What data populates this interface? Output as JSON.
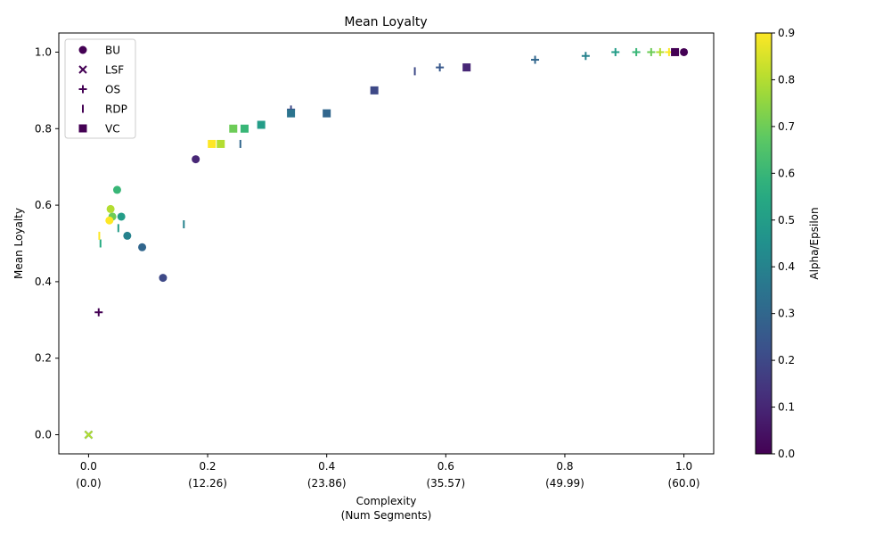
{
  "chart_data": {
    "type": "scatter",
    "title": "Mean Loyalty",
    "xlabel_lines": [
      "Complexity",
      "(Num Segments)"
    ],
    "ylabel": "Mean Loyalty",
    "xlim": [
      -0.05,
      1.05
    ],
    "ylim": [
      -0.05,
      1.05
    ],
    "x_ticks": [
      {
        "value": 0.0,
        "label": "0.0",
        "sub": "(0.0)"
      },
      {
        "value": 0.2,
        "label": "0.2",
        "sub": "(12.26)"
      },
      {
        "value": 0.4,
        "label": "0.4",
        "sub": "(23.86)"
      },
      {
        "value": 0.6,
        "label": "0.6",
        "sub": "(35.57)"
      },
      {
        "value": 0.8,
        "label": "0.8",
        "sub": "(49.99)"
      },
      {
        "value": 1.0,
        "label": "1.0",
        "sub": "(60.0)"
      }
    ],
    "y_ticks": [
      {
        "value": 0.0,
        "label": "0.0"
      },
      {
        "value": 0.2,
        "label": "0.2"
      },
      {
        "value": 0.4,
        "label": "0.4"
      },
      {
        "value": 0.6,
        "label": "0.6"
      },
      {
        "value": 0.8,
        "label": "0.8"
      },
      {
        "value": 1.0,
        "label": "1.0"
      }
    ],
    "grid": false,
    "legend_position": "top-left",
    "colorbar": {
      "label": "Alpha/Epsilon",
      "range": [
        0,
        0.9
      ],
      "colormap": "viridis",
      "ticks": [
        {
          "value": 0.0,
          "label": "0.0"
        },
        {
          "value": 0.1,
          "label": "0.1"
        },
        {
          "value": 0.2,
          "label": "0.2"
        },
        {
          "value": 0.3,
          "label": "0.3"
        },
        {
          "value": 0.4,
          "label": "0.4"
        },
        {
          "value": 0.5,
          "label": "0.5"
        },
        {
          "value": 0.6,
          "label": "0.6"
        },
        {
          "value": 0.7,
          "label": "0.7"
        },
        {
          "value": 0.8,
          "label": "0.8"
        },
        {
          "value": 0.9,
          "label": "0.9"
        }
      ]
    },
    "series": [
      {
        "name": "BU",
        "marker": "circle",
        "points": [
          {
            "x": 1.0,
            "y": 1.0,
            "c": 0.0
          },
          {
            "x": 0.18,
            "y": 0.72,
            "c": 0.1
          },
          {
            "x": 0.125,
            "y": 0.41,
            "c": 0.2
          },
          {
            "x": 0.09,
            "y": 0.49,
            "c": 0.3
          },
          {
            "x": 0.065,
            "y": 0.52,
            "c": 0.4
          },
          {
            "x": 0.055,
            "y": 0.57,
            "c": 0.5
          },
          {
            "x": 0.048,
            "y": 0.64,
            "c": 0.6
          },
          {
            "x": 0.04,
            "y": 0.57,
            "c": 0.7
          },
          {
            "x": 0.037,
            "y": 0.59,
            "c": 0.8
          },
          {
            "x": 0.035,
            "y": 0.56,
            "c": 0.9
          }
        ]
      },
      {
        "name": "LSF",
        "marker": "x",
        "points": [
          {
            "x": 0.0,
            "y": 0.0,
            "c": 0.0
          },
          {
            "x": 0.0,
            "y": 0.0,
            "c": 0.3
          },
          {
            "x": 0.0,
            "y": 0.0,
            "c": 0.6
          },
          {
            "x": 0.0,
            "y": 0.0,
            "c": 0.8
          }
        ]
      },
      {
        "name": "OS",
        "marker": "plus",
        "points": [
          {
            "x": 0.017,
            "y": 0.32,
            "c": 0.0
          },
          {
            "x": 0.34,
            "y": 0.85,
            "c": 0.2
          },
          {
            "x": 0.59,
            "y": 0.96,
            "c": 0.25
          },
          {
            "x": 0.75,
            "y": 0.98,
            "c": 0.3
          },
          {
            "x": 0.835,
            "y": 0.99,
            "c": 0.4
          },
          {
            "x": 0.885,
            "y": 1.0,
            "c": 0.5
          },
          {
            "x": 0.92,
            "y": 1.0,
            "c": 0.6
          },
          {
            "x": 0.945,
            "y": 1.0,
            "c": 0.7
          },
          {
            "x": 0.96,
            "y": 1.0,
            "c": 0.8
          },
          {
            "x": 0.975,
            "y": 1.0,
            "c": 0.9
          }
        ]
      },
      {
        "name": "RDP",
        "marker": "vline",
        "points": [
          {
            "x": 0.548,
            "y": 0.95,
            "c": 0.2
          },
          {
            "x": 0.255,
            "y": 0.76,
            "c": 0.3
          },
          {
            "x": 0.16,
            "y": 0.55,
            "c": 0.4
          },
          {
            "x": 0.05,
            "y": 0.54,
            "c": 0.5
          },
          {
            "x": 0.02,
            "y": 0.5,
            "c": 0.55
          },
          {
            "x": 0.018,
            "y": 0.52,
            "c": 0.9
          }
        ]
      },
      {
        "name": "VC",
        "marker": "square",
        "points": [
          {
            "x": 0.985,
            "y": 1.0,
            "c": 0.0
          },
          {
            "x": 0.635,
            "y": 0.96,
            "c": 0.1
          },
          {
            "x": 0.48,
            "y": 0.9,
            "c": 0.2
          },
          {
            "x": 0.4,
            "y": 0.84,
            "c": 0.3
          },
          {
            "x": 0.34,
            "y": 0.84,
            "c": 0.35
          },
          {
            "x": 0.29,
            "y": 0.81,
            "c": 0.5
          },
          {
            "x": 0.262,
            "y": 0.8,
            "c": 0.6
          },
          {
            "x": 0.243,
            "y": 0.8,
            "c": 0.7
          },
          {
            "x": 0.222,
            "y": 0.76,
            "c": 0.8
          },
          {
            "x": 0.207,
            "y": 0.76,
            "c": 0.9
          }
        ]
      }
    ]
  }
}
